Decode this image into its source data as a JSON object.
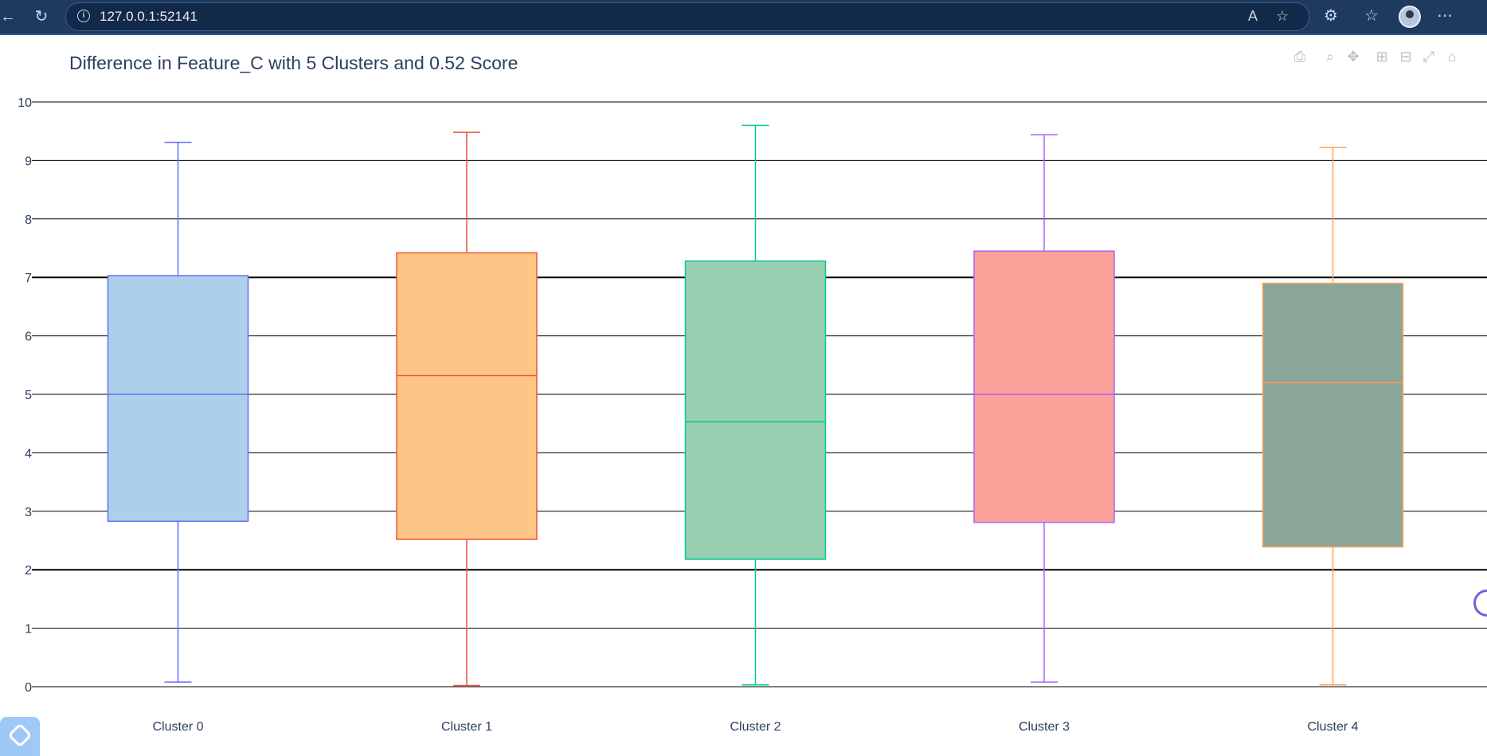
{
  "browser": {
    "url": "127.0.0.1:52141",
    "back_icon": "arrow-left-icon",
    "refresh_icon": "refresh-icon",
    "info_icon": "info-icon",
    "read_aloud_icon": "read-aloud-icon",
    "favorite_icon": "star-icon",
    "extensions_icon": "puzzle-icon",
    "favorites_icon": "favorites-icon",
    "more_icon": "ellipsis-icon"
  },
  "modebar": [
    "camera-icon",
    "zoom-icon",
    "pan-icon",
    "zoom-in-icon",
    "zoom-out-icon",
    "autoscale-icon",
    "home-icon"
  ],
  "chart_data": {
    "type": "box",
    "title": "Difference in Feature_C with 5 Clusters and 0.52 Score",
    "xlabel": "",
    "ylabel": "",
    "ylim": [
      0,
      10
    ],
    "yticks": [
      0,
      1,
      2,
      3,
      4,
      5,
      6,
      7,
      8,
      9,
      10
    ],
    "categories": [
      "Cluster 0",
      "Cluster 1",
      "Cluster 2",
      "Cluster 3",
      "Cluster 4"
    ],
    "grid": true,
    "series": [
      {
        "category": "Cluster 0",
        "min": 0.08,
        "q1": 2.83,
        "median": 5.0,
        "q3": 7.03,
        "max": 9.31,
        "fill": "#aecfe9",
        "line": "#636efa"
      },
      {
        "category": "Cluster 1",
        "min": 0.02,
        "q1": 2.52,
        "median": 5.32,
        "q3": 7.42,
        "max": 9.48,
        "fill": "#fdc686",
        "line": "#ef553b"
      },
      {
        "category": "Cluster 2",
        "min": 0.03,
        "q1": 2.18,
        "median": 4.53,
        "q3": 7.28,
        "max": 9.6,
        "fill": "#98cfb0",
        "line": "#00cc96"
      },
      {
        "category": "Cluster 3",
        "min": 0.08,
        "q1": 2.81,
        "median": 5.0,
        "q3": 7.45,
        "max": 9.44,
        "fill": "#fca09a",
        "line": "#ab63fa"
      },
      {
        "category": "Cluster 4",
        "min": 0.03,
        "q1": 2.39,
        "median": 5.2,
        "q3": 6.9,
        "max": 9.22,
        "fill": "#8aa698",
        "line": "#ffa15a"
      }
    ]
  }
}
